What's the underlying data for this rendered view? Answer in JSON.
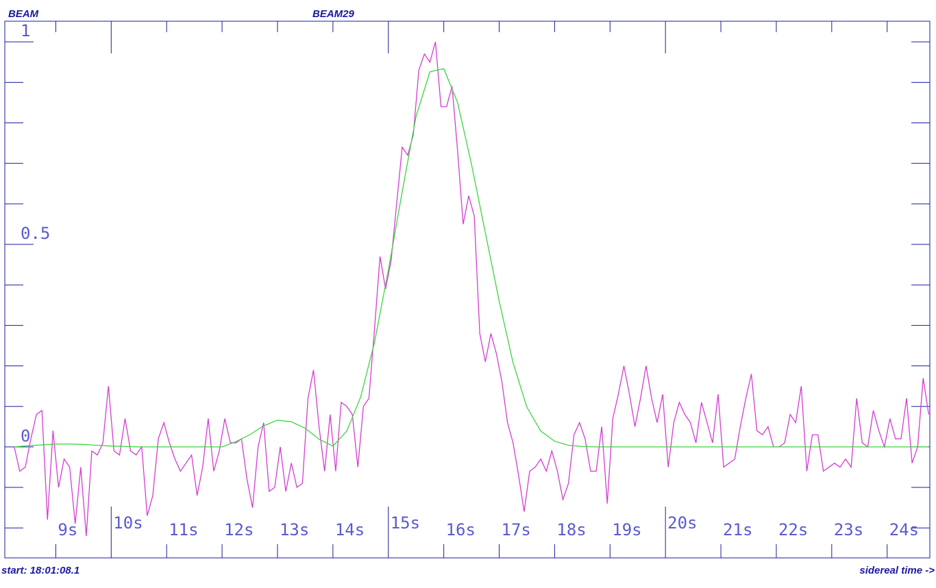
{
  "chart_data": {
    "type": "line",
    "title": "BEAM",
    "subtitle": "BEAM29",
    "annotations": [
      "start: 18:01:08.1"
    ],
    "xlabel": "sidereal time ->",
    "xlim": [
      8.08,
      24.77
    ],
    "ylim": [
      -0.274,
      1.051
    ],
    "xticks": [
      {
        "value": 9,
        "label": "9s"
      },
      {
        "value": 10,
        "label": "10s"
      },
      {
        "value": 11,
        "label": "11s"
      },
      {
        "value": 12,
        "label": "12s"
      },
      {
        "value": 13,
        "label": "13s"
      },
      {
        "value": 14,
        "label": "14s"
      },
      {
        "value": 15,
        "label": "15s"
      },
      {
        "value": 16,
        "label": "16s"
      },
      {
        "value": 17,
        "label": "17s"
      },
      {
        "value": 18,
        "label": "18s"
      },
      {
        "value": 19,
        "label": "19s"
      },
      {
        "value": 20,
        "label": "20s"
      },
      {
        "value": 21,
        "label": "21s"
      },
      {
        "value": 22,
        "label": "22s"
      },
      {
        "value": 23,
        "label": "23s"
      },
      {
        "value": 24,
        "label": "24s"
      }
    ],
    "yticks": [
      0,
      0.5,
      1
    ],
    "yminorticks": [
      -0.2,
      -0.1,
      0.1,
      0.2,
      0.3,
      0.4,
      0.6,
      0.7,
      0.8,
      0.9
    ],
    "series": [
      {
        "color": "#d43cd4",
        "x": [
          8.25,
          8.35,
          8.45,
          8.55,
          8.65,
          8.75,
          8.85,
          8.95,
          9.05,
          9.15,
          9.25,
          9.35,
          9.45,
          9.55,
          9.65,
          9.75,
          9.85,
          9.95,
          10.05,
          10.15,
          10.25,
          10.35,
          10.45,
          10.55,
          10.65,
          10.75,
          10.85,
          10.95,
          11.05,
          11.15,
          11.25,
          11.35,
          11.45,
          11.55,
          11.65,
          11.75,
          11.85,
          11.95,
          12.05,
          12.15,
          12.25,
          12.35,
          12.45,
          12.55,
          12.65,
          12.75,
          12.85,
          12.95,
          13.05,
          13.15,
          13.25,
          13.35,
          13.45,
          13.55,
          13.65,
          13.75,
          13.85,
          13.95,
          14.05,
          14.15,
          14.25,
          14.35,
          14.45,
          14.55,
          14.65,
          14.75,
          14.85,
          14.95,
          15.05,
          15.15,
          15.25,
          15.35,
          15.45,
          15.55,
          15.65,
          15.75,
          15.85,
          15.95,
          16.05,
          16.15,
          16.25,
          16.35,
          16.45,
          16.55,
          16.65,
          16.75,
          16.85,
          16.95,
          17.05,
          17.15,
          17.25,
          17.35,
          17.45,
          17.55,
          17.65,
          17.75,
          17.85,
          17.95,
          18.05,
          18.15,
          18.25,
          18.35,
          18.45,
          18.55,
          18.65,
          18.75,
          18.85,
          18.95,
          19.05,
          19.15,
          19.25,
          19.35,
          19.45,
          19.55,
          19.65,
          19.75,
          19.85,
          19.95,
          20.05,
          20.15,
          20.25,
          20.35,
          20.45,
          20.55,
          20.65,
          20.75,
          20.85,
          20.95,
          21.05,
          21.15,
          21.25,
          21.35,
          21.45,
          21.55,
          21.65,
          21.75,
          21.85,
          21.95,
          22.05,
          22.15,
          22.25,
          22.35,
          22.45,
          22.55,
          22.65,
          22.75,
          22.85,
          22.95,
          23.05,
          23.15,
          23.25,
          23.35,
          23.45,
          23.55,
          23.65,
          23.75,
          23.85,
          23.95,
          24.05,
          24.15,
          24.25,
          24.35,
          24.45,
          24.55,
          24.65,
          24.75
        ],
        "values": [
          0,
          -0.06,
          -0.05,
          0.02,
          0.08,
          0.09,
          -0.18,
          0.04,
          -0.1,
          -0.03,
          -0.05,
          -0.19,
          -0.05,
          -0.22,
          -0.01,
          -0.02,
          0.01,
          0.15,
          -0.01,
          -0.02,
          0.07,
          -0.01,
          -0.02,
          0,
          -0.17,
          -0.12,
          0.02,
          0.06,
          0.01,
          -0.03,
          -0.06,
          -0.04,
          -0.02,
          -0.12,
          -0.05,
          0.07,
          -0.06,
          -0.01,
          0.07,
          0.01,
          0.01,
          0.02,
          -0.08,
          -0.15,
          0,
          0.06,
          -0.11,
          -0.1,
          0,
          -0.11,
          -0.04,
          -0.1,
          -0.09,
          0.12,
          0.19,
          0.05,
          -0.06,
          0.08,
          -0.06,
          0.11,
          0.1,
          0.08,
          -0.05,
          0.1,
          0.12,
          0.29,
          0.47,
          0.39,
          0.46,
          0.6,
          0.74,
          0.72,
          0.77,
          0.93,
          0.97,
          0.95,
          1,
          0.84,
          0.84,
          0.89,
          0.73,
          0.55,
          0.62,
          0.57,
          0.28,
          0.21,
          0.28,
          0.23,
          0.16,
          0.06,
          0.01,
          -0.07,
          -0.16,
          -0.06,
          -0.05,
          -0.03,
          -0.06,
          -0.01,
          -0.06,
          -0.13,
          -0.09,
          0.03,
          0.06,
          0.02,
          -0.06,
          -0.06,
          0.05,
          -0.14,
          0.07,
          0.13,
          0.2,
          0.13,
          0.05,
          0.12,
          0.2,
          0.12,
          0.06,
          0.13,
          -0.05,
          0.06,
          0.11,
          0.08,
          0.06,
          0.01,
          0.11,
          0.06,
          0.01,
          0.13,
          -0.05,
          -0.04,
          -0.03,
          0.05,
          0.12,
          0.18,
          0.04,
          0.03,
          0.05,
          0,
          0,
          0.01,
          0.08,
          0.06,
          0.15,
          -0.06,
          0.03,
          0.03,
          -0.06,
          -0.05,
          -0.04,
          -0.05,
          -0.03,
          -0.05,
          0.12,
          0.01,
          0,
          0.09,
          0.04,
          0,
          0.07,
          0.02,
          0.02,
          0.12,
          -0.04,
          0,
          0.17,
          0.08
        ]
      },
      {
        "color": "#3cd43c",
        "x": [
          8.25,
          8.5,
          8.75,
          9,
          9.25,
          9.5,
          9.75,
          10,
          10.25,
          10.5,
          10.75,
          11,
          11.25,
          11.5,
          11.75,
          12,
          12.25,
          12.5,
          12.75,
          13,
          13.25,
          13.5,
          13.75,
          14,
          14.25,
          14.5,
          14.75,
          15,
          15.25,
          15.5,
          15.75,
          16,
          16.25,
          16.5,
          16.75,
          17,
          17.25,
          17.5,
          17.75,
          18,
          18.25,
          18.5,
          18.75,
          19,
          19.25,
          19.5,
          19.75,
          20,
          20.25,
          20.5,
          20.75,
          21,
          21.25,
          21.5,
          21.75,
          22,
          22.25,
          22.5,
          22.75,
          23,
          23.25,
          23.5,
          23.75,
          24,
          24.25,
          24.5,
          24.75
        ],
        "values": [
          0,
          0.003,
          0.005,
          0.007,
          0.007,
          0.006,
          0.004,
          0.002,
          0.001,
          0,
          0,
          0,
          0,
          0,
          0,
          0,
          0.013,
          0.03,
          0.052,
          0.066,
          0.062,
          0.046,
          0.019,
          0.002,
          0.039,
          0.123,
          0.258,
          0.436,
          0.63,
          0.816,
          0.926,
          0.934,
          0.85,
          0.698,
          0.529,
          0.36,
          0.208,
          0.098,
          0.039,
          0.014,
          0.004,
          0.001,
          0,
          0,
          0,
          0,
          0,
          0,
          0,
          0,
          0,
          0,
          0,
          0,
          0,
          0,
          0,
          0,
          0,
          0,
          0,
          0,
          0,
          0,
          0,
          0,
          0
        ]
      }
    ]
  }
}
